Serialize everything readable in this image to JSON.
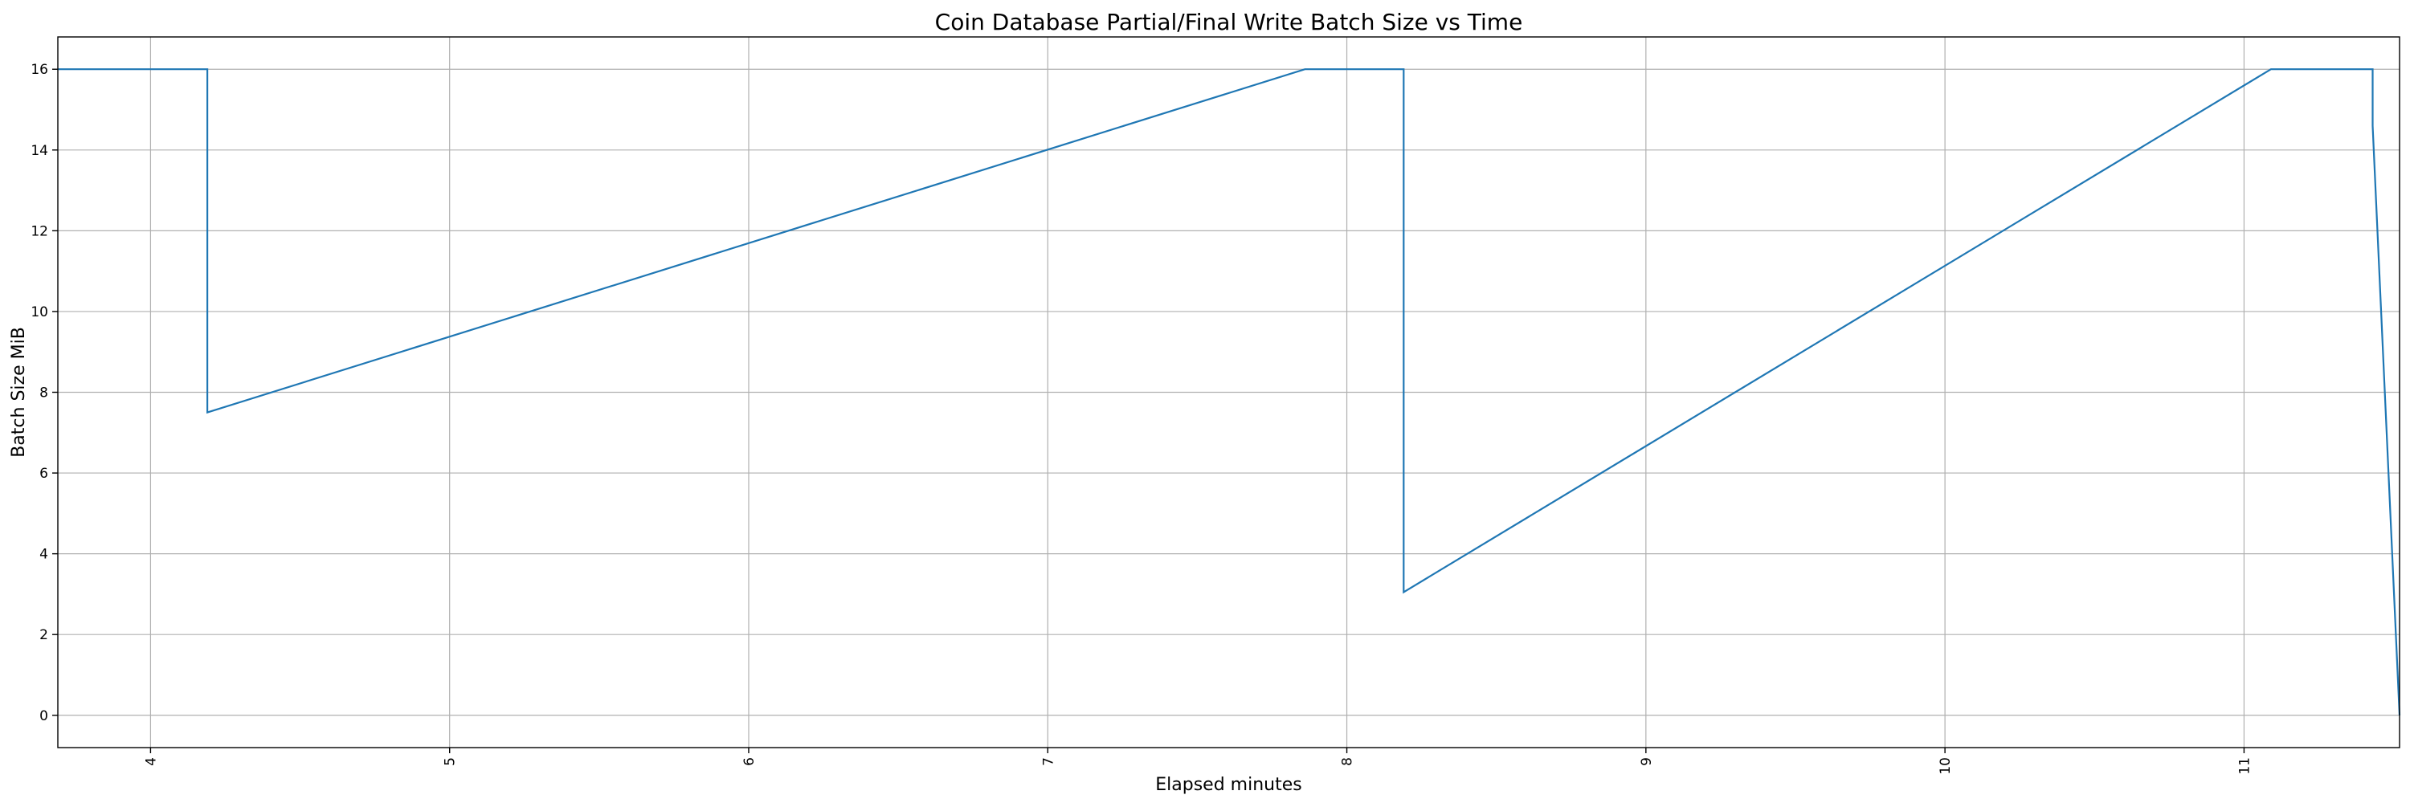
{
  "chart_data": {
    "type": "line",
    "title": "Coin Database Partial/Final Write Batch Size vs Time",
    "xlabel": "Elapsed minutes",
    "ylabel": "Batch Size MiB",
    "xlim": [
      3.69,
      11.52
    ],
    "ylim": [
      -0.8,
      16.8
    ],
    "xticks": [
      4,
      5,
      6,
      7,
      8,
      9,
      10,
      11
    ],
    "yticks": [
      0,
      2,
      4,
      6,
      8,
      10,
      12,
      14,
      16
    ],
    "x_tick_rotation": 90,
    "grid": true,
    "line_color": "#1f77b4",
    "series": [
      {
        "x": [
          3.69,
          4.19,
          4.19,
          7.86,
          8.19,
          8.19,
          11.09,
          11.43,
          11.43,
          11.52
        ],
        "y": [
          16,
          16,
          7.5,
          16,
          16,
          3.05,
          16,
          16,
          14.6,
          0
        ]
      }
    ]
  }
}
